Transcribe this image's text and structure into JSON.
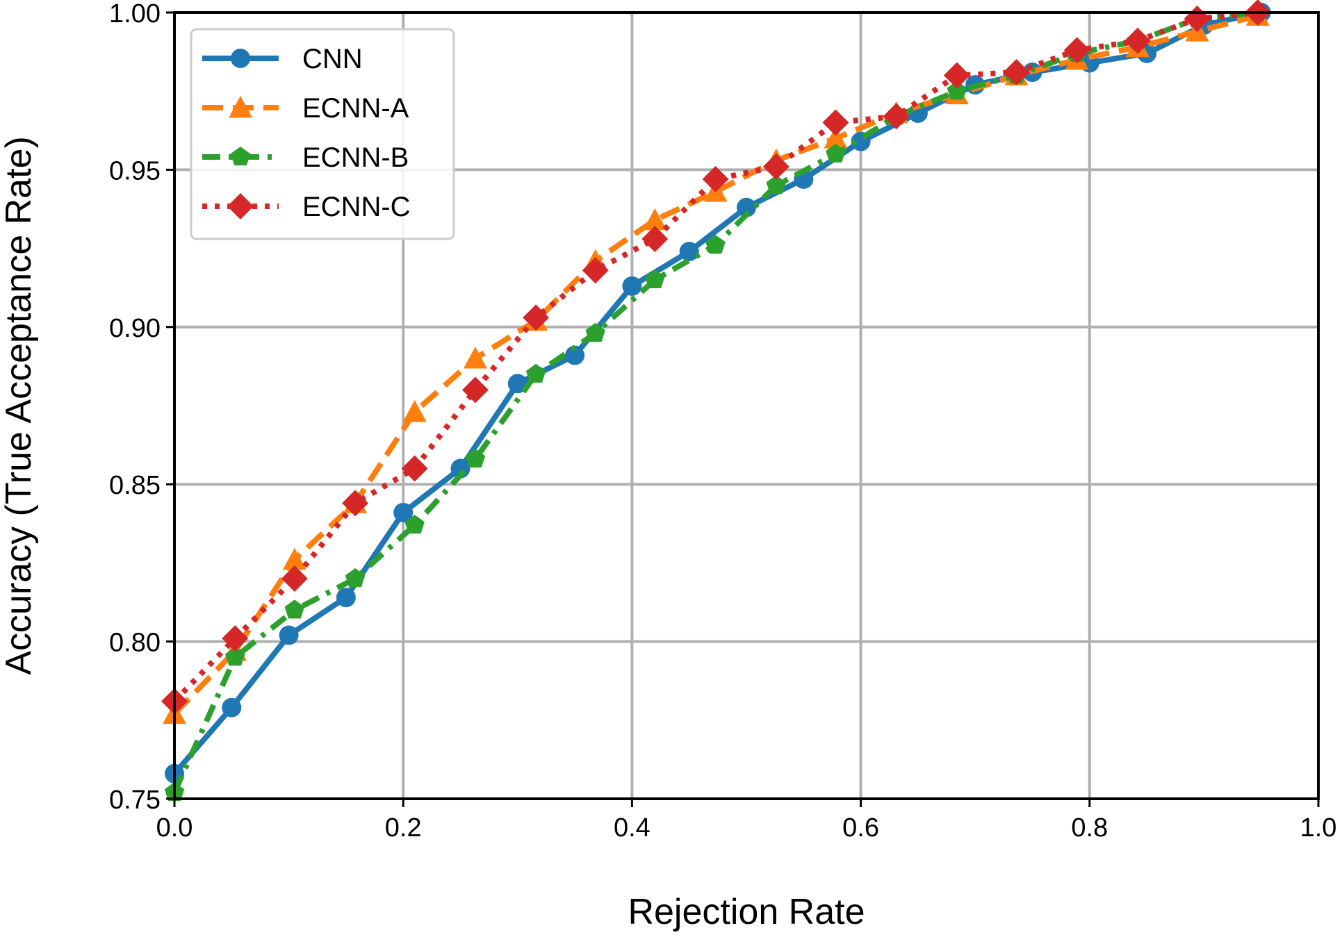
{
  "chart_data": {
    "type": "line",
    "title": "",
    "xlabel": "Rejection Rate",
    "ylabel": "Accuracy (True Acceptance Rate)",
    "xlim": [
      0.0,
      1.0
    ],
    "ylim": [
      0.75,
      1.0
    ],
    "xticks": [
      "0.0",
      "0.2",
      "0.4",
      "0.6",
      "0.8",
      "1.0"
    ],
    "yticks": [
      "0.75",
      "0.80",
      "0.85",
      "0.90",
      "0.95",
      "1.00"
    ],
    "grid": true,
    "legend": "top-left",
    "series": [
      {
        "name": "CNN",
        "color": "#1f77b4",
        "marker": "circle",
        "linestyle": "solid",
        "x": [
          0.0,
          0.05,
          0.1,
          0.15,
          0.2,
          0.25,
          0.3,
          0.35,
          0.4,
          0.45,
          0.5,
          0.55,
          0.6,
          0.65,
          0.7,
          0.75,
          0.8,
          0.85,
          0.9,
          0.95
        ],
        "y": [
          0.758,
          0.779,
          0.802,
          0.814,
          0.841,
          0.855,
          0.882,
          0.891,
          0.913,
          0.924,
          0.938,
          0.947,
          0.959,
          0.968,
          0.977,
          0.981,
          0.984,
          0.987,
          0.996,
          1.0
        ]
      },
      {
        "name": "ECNN-A",
        "color": "#ff7f0e",
        "marker": "triangle",
        "linestyle": "dashed",
        "x": [
          0.0,
          0.053,
          0.105,
          0.158,
          0.21,
          0.263,
          0.316,
          0.368,
          0.42,
          0.473,
          0.526,
          0.578,
          0.631,
          0.684,
          0.736,
          0.789,
          0.842,
          0.894,
          0.947
        ],
        "y": [
          0.777,
          0.797,
          0.826,
          0.844,
          0.873,
          0.89,
          0.902,
          0.921,
          0.934,
          0.943,
          0.953,
          0.96,
          0.968,
          0.974,
          0.98,
          0.985,
          0.989,
          0.994,
          0.999
        ]
      },
      {
        "name": "ECNN-B",
        "color": "#2ca02c",
        "marker": "pentagon",
        "linestyle": "dashdot",
        "x": [
          0.0,
          0.053,
          0.105,
          0.158,
          0.21,
          0.263,
          0.316,
          0.368,
          0.42,
          0.473,
          0.526,
          0.578,
          0.631,
          0.684,
          0.736,
          0.789,
          0.842,
          0.894,
          0.947
        ],
        "y": [
          0.752,
          0.795,
          0.81,
          0.82,
          0.837,
          0.858,
          0.885,
          0.898,
          0.915,
          0.926,
          0.945,
          0.955,
          0.967,
          0.975,
          0.98,
          0.987,
          0.991,
          0.998,
          1.0
        ]
      },
      {
        "name": "ECNN-C",
        "color": "#d62728",
        "marker": "diamond",
        "linestyle": "dotted",
        "x": [
          0.0,
          0.053,
          0.105,
          0.158,
          0.21,
          0.263,
          0.316,
          0.368,
          0.42,
          0.473,
          0.526,
          0.578,
          0.631,
          0.684,
          0.736,
          0.789,
          0.842,
          0.894,
          0.947
        ],
        "y": [
          0.781,
          0.801,
          0.82,
          0.844,
          0.855,
          0.88,
          0.903,
          0.918,
          0.928,
          0.947,
          0.951,
          0.965,
          0.967,
          0.98,
          0.981,
          0.988,
          0.991,
          0.998,
          1.0
        ]
      }
    ]
  }
}
